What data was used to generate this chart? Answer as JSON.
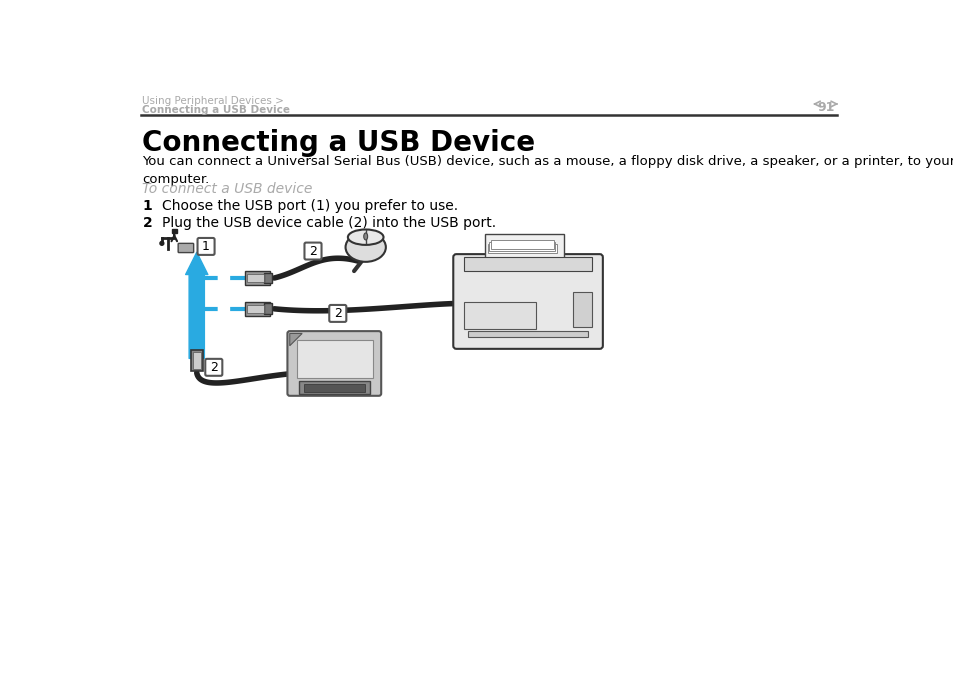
{
  "bg_color": "#ffffff",
  "header_text1": "Using Peripheral Devices >",
  "header_text2": "Connecting a USB Device",
  "page_num": "91",
  "title": "Connecting a USB Device",
  "body_text": "You can connect a Universal Serial Bus (USB) device, such as a mouse, a floppy disk drive, a speaker, or a printer, to your\ncomputer.",
  "subtitle": "To connect a USB device",
  "step1": "Choose the USB port (1) you prefer to use.",
  "step2": "Plug the USB device cable (2) into the USB port.",
  "header_color": "#aaaaaa",
  "title_color": "#000000",
  "body_color": "#000000",
  "subtitle_color": "#aaaaaa",
  "step_color": "#000000",
  "accent_color": "#29aae1",
  "line_color": "#555555"
}
